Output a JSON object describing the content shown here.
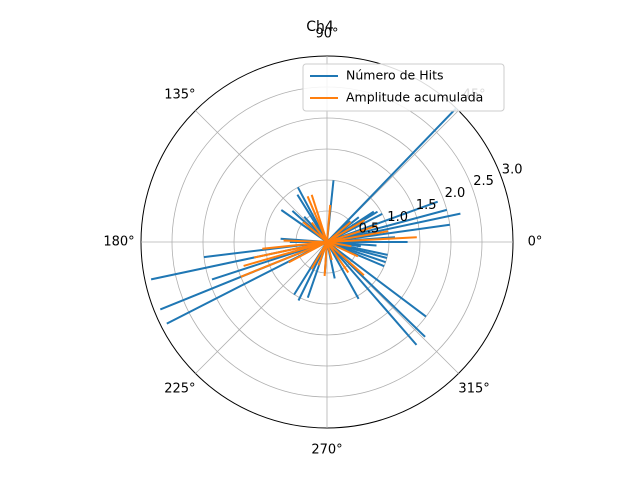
{
  "chart_data": {
    "type": "polar-line",
    "title": "Ch4",
    "angle_unit": "degrees",
    "r_range": [
      0,
      3.0
    ],
    "r_ticks": [
      "0.5",
      "1.0",
      "1.5",
      "2.0",
      "2.5",
      "3.0"
    ],
    "r_tick_values": [
      0.5,
      1.0,
      1.5,
      2.0,
      2.5,
      3.0
    ],
    "theta_ticks": [
      "0°",
      "45°",
      "90°",
      "135°",
      "180°",
      "225°",
      "270°",
      "315°"
    ],
    "theta_tick_values": [
      0,
      45,
      90,
      135,
      180,
      225,
      270,
      315
    ],
    "grid": true,
    "legend_placement": "upper-right",
    "series": [
      {
        "name": "Número de Hits",
        "color": "#1f77b4",
        "points": [
          {
            "theta": 0,
            "r": 1.3
          },
          {
            "theta": 4,
            "r": 1.1
          },
          {
            "theta": 8,
            "r": 2.0
          },
          {
            "theta": 12,
            "r": 2.2
          },
          {
            "theta": 15,
            "r": 2.0
          },
          {
            "theta": 20,
            "r": 1.9
          },
          {
            "theta": 27,
            "r": 1.0
          },
          {
            "theta": 31,
            "r": 0.95
          },
          {
            "theta": 33,
            "r": 0.9
          },
          {
            "theta": 38,
            "r": 0.65
          },
          {
            "theta": 42,
            "r": 0.5
          },
          {
            "theta": 46,
            "r": 3.0
          },
          {
            "theta": 84,
            "r": 1.0
          },
          {
            "theta": 118,
            "r": 1.0
          },
          {
            "theta": 122,
            "r": 0.9
          },
          {
            "theta": 132,
            "r": 0.55
          },
          {
            "theta": 138,
            "r": 0.75
          },
          {
            "theta": 145,
            "r": 0.9
          },
          {
            "theta": 176,
            "r": 0.75
          },
          {
            "theta": 180,
            "r": 0.6
          },
          {
            "theta": 187,
            "r": 2.0
          },
          {
            "theta": 192,
            "r": 2.9
          },
          {
            "theta": 198,
            "r": 1.95
          },
          {
            "theta": 202,
            "r": 2.9
          },
          {
            "theta": 207,
            "r": 2.9
          },
          {
            "theta": 238,
            "r": 1.0
          },
          {
            "theta": 244,
            "r": 1.05
          },
          {
            "theta": 251,
            "r": 0.95
          },
          {
            "theta": 266,
            "r": 0.5
          },
          {
            "theta": 282,
            "r": 0.6
          },
          {
            "theta": 299,
            "r": 1.05
          },
          {
            "theta": 311,
            "r": 2.2
          },
          {
            "theta": 316,
            "r": 2.2
          },
          {
            "theta": 323,
            "r": 2.0
          },
          {
            "theta": 337,
            "r": 1.0
          },
          {
            "theta": 341,
            "r": 1.0
          },
          {
            "theta": 345,
            "r": 1.0
          },
          {
            "theta": 348,
            "r": 1.0
          },
          {
            "theta": 353,
            "r": 0.55
          },
          {
            "theta": 356,
            "r": 0.8
          }
        ]
      },
      {
        "name": "Amplitude acumulada",
        "color": "#ff7f0e",
        "points": [
          {
            "theta": 3,
            "r": 1.45
          },
          {
            "theta": 10,
            "r": 1.0
          },
          {
            "theta": 18,
            "r": 0.85
          },
          {
            "theta": 30,
            "r": 0.7
          },
          {
            "theta": 40,
            "r": 0.5
          },
          {
            "theta": 85,
            "r": 0.6
          },
          {
            "theta": 108,
            "r": 0.8
          },
          {
            "theta": 113,
            "r": 0.8
          },
          {
            "theta": 128,
            "r": 0.4
          },
          {
            "theta": 140,
            "r": 0.5
          },
          {
            "theta": 178,
            "r": 0.7
          },
          {
            "theta": 186,
            "r": 1.05
          },
          {
            "theta": 192,
            "r": 1.2
          },
          {
            "theta": 196,
            "r": 1.4
          },
          {
            "theta": 202,
            "r": 1.5
          },
          {
            "theta": 208,
            "r": 0.7
          },
          {
            "theta": 240,
            "r": 0.5
          },
          {
            "theta": 250,
            "r": 0.4
          },
          {
            "theta": 266,
            "r": 0.55
          },
          {
            "theta": 285,
            "r": 0.3
          },
          {
            "theta": 305,
            "r": 0.6
          },
          {
            "theta": 318,
            "r": 0.8
          },
          {
            "theta": 335,
            "r": 0.55
          },
          {
            "theta": 350,
            "r": 0.4
          }
        ]
      }
    ]
  }
}
